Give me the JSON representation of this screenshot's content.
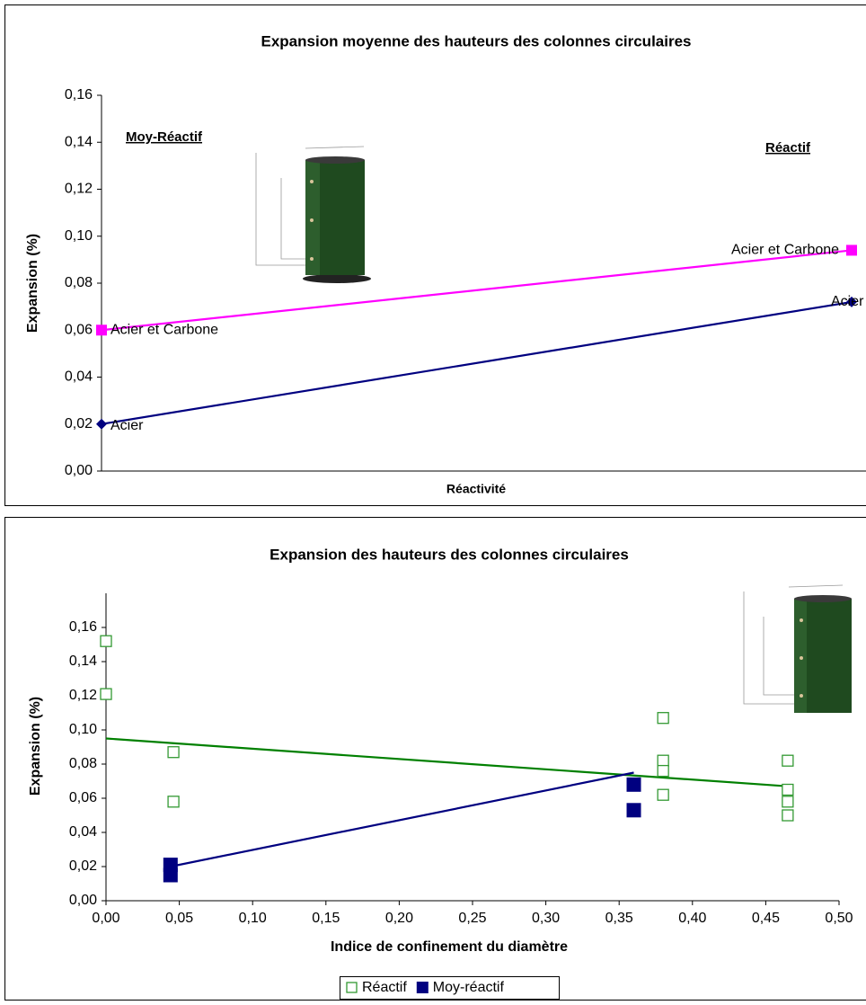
{
  "chart_data": [
    {
      "type": "line",
      "title": "Expansion moyenne des hauteurs des colonnes circulaires",
      "y_label": "Expansion (%)",
      "x_label": "Réactivité",
      "categories": [
        null,
        null
      ],
      "series": [
        {
          "name": "Acier et Carbone",
          "color": "#ff00ff",
          "marker": "square",
          "values": [
            0.06,
            0.094
          ]
        },
        {
          "name": "Acier",
          "color": "#000080",
          "marker": "diamond",
          "values": [
            0.02,
            0.072
          ]
        }
      ],
      "annotations": [
        "Moy-Réactif",
        "Réactif"
      ],
      "ylim": [
        0,
        0.16
      ],
      "yticks": [
        {
          "value": 0,
          "label": "0,00"
        },
        {
          "value": 0.02,
          "label": "0,02"
        },
        {
          "value": 0.04,
          "label": "0,04"
        },
        {
          "value": 0.06,
          "label": "0,06"
        },
        {
          "value": 0.08,
          "label": "0,08"
        },
        {
          "value": 0.1,
          "label": "0,10"
        },
        {
          "value": 0.12,
          "label": "0,12"
        },
        {
          "value": 0.14,
          "label": "0,14"
        },
        {
          "value": 0.16,
          "label": "0,16"
        }
      ]
    },
    {
      "type": "scatter",
      "title": "Expansion des hauteurs des colonnes circulaires",
      "y_label": "Expansion (%)",
      "x_label": "Indice de confinement du diamètre",
      "series": [
        {
          "name": "Réactif",
          "color": "#339933",
          "marker": "open-square",
          "x": [
            0,
            0,
            0.046,
            0.046,
            0.38,
            0.38,
            0.38,
            0.38,
            0.465,
            0.465,
            0.465,
            0.465
          ],
          "values": [
            0.152,
            0.121,
            0.087,
            0.058,
            0.107,
            0.082,
            0.076,
            0.062,
            0.082,
            0.065,
            0.058,
            0.05
          ],
          "trend": {
            "color": "#008000",
            "x": [
              0,
              0.465
            ],
            "values": [
              0.095,
              0.067
            ]
          }
        },
        {
          "name": "Moy-réactif",
          "color": "#000080",
          "marker": "filled-square",
          "x": [
            0.044,
            0.044,
            0.36,
            0.36
          ],
          "values": [
            0.021,
            0.015,
            0.068,
            0.053
          ],
          "trend": {
            "color": "#000080",
            "x": [
              0.044,
              0.36
            ],
            "values": [
              0.02,
              0.075
            ]
          }
        }
      ],
      "xlim": [
        0,
        0.5
      ],
      "xticks": [
        {
          "value": 0,
          "label": "0,00"
        },
        {
          "value": 0.05,
          "label": "0,05"
        },
        {
          "value": 0.1,
          "label": "0,10"
        },
        {
          "value": 0.15,
          "label": "0,15"
        },
        {
          "value": 0.2,
          "label": "0,20"
        },
        {
          "value": 0.25,
          "label": "0,25"
        },
        {
          "value": 0.3,
          "label": "0,30"
        },
        {
          "value": 0.35,
          "label": "0,35"
        },
        {
          "value": 0.4,
          "label": "0,40"
        },
        {
          "value": 0.45,
          "label": "0,45"
        },
        {
          "value": 0.5,
          "label": "0,50"
        }
      ],
      "ylim": [
        0,
        0.18
      ],
      "yticks": [
        {
          "value": 0,
          "label": "0,00"
        },
        {
          "value": 0.02,
          "label": "0,02"
        },
        {
          "value": 0.04,
          "label": "0,04"
        },
        {
          "value": 0.06,
          "label": "0,06"
        },
        {
          "value": 0.08,
          "label": "0,08"
        },
        {
          "value": 0.1,
          "label": "0,10"
        },
        {
          "value": 0.12,
          "label": "0,12"
        },
        {
          "value": 0.14,
          "label": "0,14"
        },
        {
          "value": 0.16,
          "label": "0,16"
        }
      ],
      "legend": "bottom"
    }
  ]
}
